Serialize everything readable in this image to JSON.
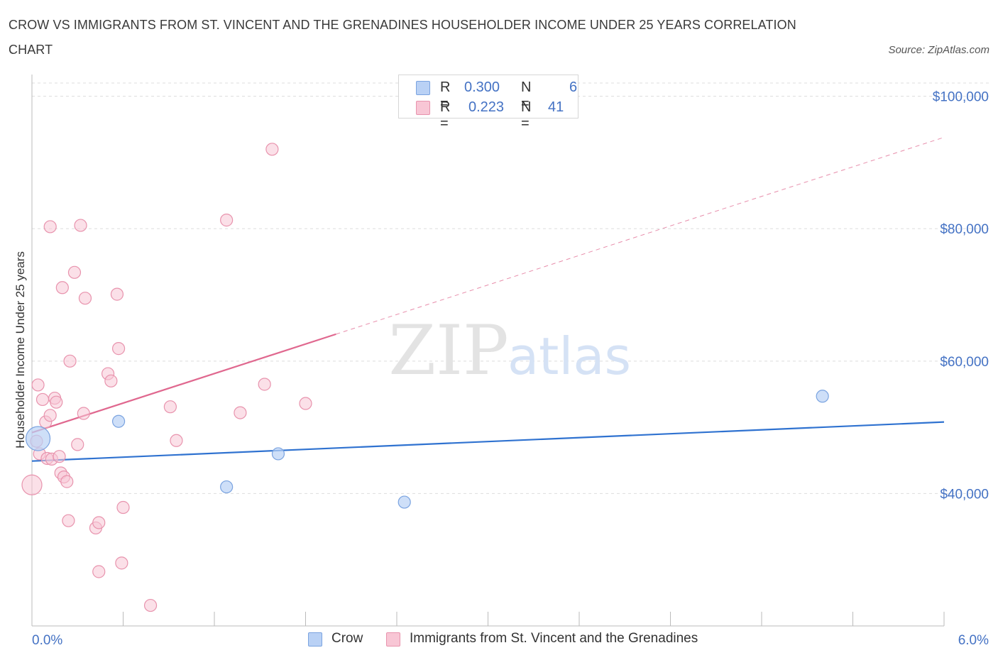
{
  "title": "CROW VS IMMIGRANTS FROM ST. VINCENT AND THE GRENADINES HOUSEHOLDER INCOME UNDER 25 YEARS CORRELATION CHART",
  "source": "Source: ZipAtlas.com",
  "watermark": {
    "zip": "ZIP",
    "atlas": "atlas"
  },
  "colors": {
    "crow_fill": "#b9d1f5",
    "crow_stroke": "#7aa3e0",
    "crow_line": "#2f72d0",
    "svg_fill": "#f8c6d5",
    "svg_stroke": "#e893ad",
    "svg_line": "#e0688f",
    "tick_label": "#4472c4",
    "grid": "#dddddd"
  },
  "legend": {
    "rows": [
      {
        "r_label": "R =",
        "r_value": "0.300",
        "n_label": "N =",
        "n_value": "6"
      },
      {
        "r_label": "R =",
        "r_value": "0.223",
        "n_label": "N =",
        "n_value": "41"
      }
    ]
  },
  "bottom_legend": {
    "crow": "Crow",
    "immigrants": "Immigrants from St. Vincent and the Grenadines"
  },
  "chart_data": {
    "type": "scatter",
    "title": "CROW VS IMMIGRANTS FROM ST. VINCENT AND THE GRENADINES HOUSEHOLDER INCOME UNDER 25 YEARS CORRELATION CHART",
    "xlabel": "",
    "ylabel": "Householder Income Under 25 years",
    "xlim": [
      0,
      6
    ],
    "ylim": [
      20000,
      102000
    ],
    "x_tick_labels": [
      "0.0%",
      "6.0%"
    ],
    "y_ticks": [
      40000,
      60000,
      80000,
      100000
    ],
    "y_tick_labels": [
      "$40,000",
      "$60,000",
      "$80,000",
      "$100,000"
    ],
    "grid": true,
    "series": [
      {
        "name": "Crow",
        "R": 0.3,
        "N": 6,
        "points": [
          {
            "x": 0.04,
            "y": 48300,
            "big": true
          },
          {
            "x": 0.57,
            "y": 50900
          },
          {
            "x": 1.28,
            "y": 41000
          },
          {
            "x": 1.62,
            "y": 46000
          },
          {
            "x": 2.45,
            "y": 38700
          },
          {
            "x": 5.2,
            "y": 54700
          }
        ],
        "trend": {
          "x0": 0.0,
          "y0": 44900,
          "x1": 6.0,
          "y1": 50800,
          "dashed_from": null
        }
      },
      {
        "name": "Immigrants from St. Vincent and the Grenadines",
        "R": 0.223,
        "N": 41,
        "points": [
          {
            "x": 0.0,
            "y": 41300,
            "big": true
          },
          {
            "x": 0.03,
            "y": 47900
          },
          {
            "x": 0.04,
            "y": 56400
          },
          {
            "x": 0.05,
            "y": 46000
          },
          {
            "x": 0.07,
            "y": 54200
          },
          {
            "x": 0.09,
            "y": 50800
          },
          {
            "x": 0.1,
            "y": 45300
          },
          {
            "x": 0.12,
            "y": 51800
          },
          {
            "x": 0.12,
            "y": 80300
          },
          {
            "x": 0.13,
            "y": 45200
          },
          {
            "x": 0.15,
            "y": 54400
          },
          {
            "x": 0.16,
            "y": 53800
          },
          {
            "x": 0.18,
            "y": 45600
          },
          {
            "x": 0.19,
            "y": 43100
          },
          {
            "x": 0.2,
            "y": 71100
          },
          {
            "x": 0.21,
            "y": 42500
          },
          {
            "x": 0.23,
            "y": 41800
          },
          {
            "x": 0.24,
            "y": 35900
          },
          {
            "x": 0.25,
            "y": 60000
          },
          {
            "x": 0.28,
            "y": 73400
          },
          {
            "x": 0.3,
            "y": 47400
          },
          {
            "x": 0.32,
            "y": 80500
          },
          {
            "x": 0.34,
            "y": 52100
          },
          {
            "x": 0.35,
            "y": 69500
          },
          {
            "x": 0.42,
            "y": 34800
          },
          {
            "x": 0.44,
            "y": 35600
          },
          {
            "x": 0.44,
            "y": 28200
          },
          {
            "x": 0.5,
            "y": 58100
          },
          {
            "x": 0.52,
            "y": 57000
          },
          {
            "x": 0.56,
            "y": 70100
          },
          {
            "x": 0.57,
            "y": 61900
          },
          {
            "x": 0.59,
            "y": 29500
          },
          {
            "x": 0.6,
            "y": 37900
          },
          {
            "x": 0.78,
            "y": 23100
          },
          {
            "x": 0.91,
            "y": 53100
          },
          {
            "x": 0.95,
            "y": 48000
          },
          {
            "x": 1.28,
            "y": 81300
          },
          {
            "x": 1.37,
            "y": 52200
          },
          {
            "x": 1.53,
            "y": 56500
          },
          {
            "x": 1.58,
            "y": 92000
          },
          {
            "x": 1.8,
            "y": 53600
          }
        ],
        "trend": {
          "x0": 0.0,
          "y0": 49200,
          "x1": 6.0,
          "y1": 93800,
          "dashed_from": 2.0
        }
      }
    ]
  }
}
